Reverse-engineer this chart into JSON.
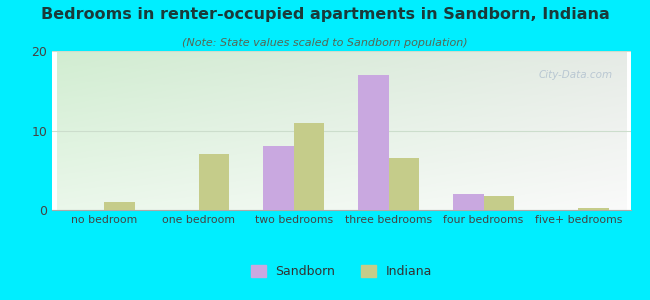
{
  "title": "Bedrooms in renter-occupied apartments in Sandborn, Indiana",
  "subtitle": "(Note: State values scaled to Sandborn population)",
  "categories": [
    "no bedroom",
    "one bedroom",
    "two bedrooms",
    "three bedrooms",
    "four bedrooms",
    "five+ bedrooms"
  ],
  "sandborn_values": [
    0,
    0,
    8,
    17,
    2,
    0
  ],
  "indiana_values": [
    1,
    7,
    11,
    6.5,
    1.8,
    0.2
  ],
  "sandborn_color": "#c9a8e0",
  "indiana_color": "#c5cc8a",
  "background_outer": "#00eeff",
  "ylim": [
    0,
    20
  ],
  "yticks": [
    0,
    10,
    20
  ],
  "bar_width": 0.32,
  "legend_sandborn": "Sandborn",
  "legend_indiana": "Indiana",
  "watermark": "City-Data.com",
  "title_color": "#1a3a3a",
  "subtitle_color": "#556655",
  "tick_color": "#444444"
}
